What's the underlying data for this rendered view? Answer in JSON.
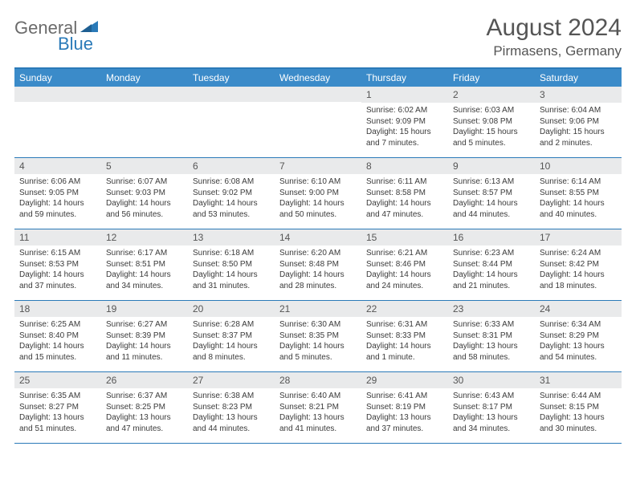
{
  "logo": {
    "part1": "General",
    "part2": "Blue"
  },
  "title": {
    "month": "August 2024",
    "location": "Pirmasens, Germany"
  },
  "colors": {
    "header_bg": "#3b8bc9",
    "header_border": "#2a7ab8",
    "band_bg": "#e9eaeb",
    "text": "#3a3a3a",
    "title_text": "#555555"
  },
  "dow": [
    "Sunday",
    "Monday",
    "Tuesday",
    "Wednesday",
    "Thursday",
    "Friday",
    "Saturday"
  ],
  "weeks": [
    [
      {
        "day": "",
        "sunrise": "",
        "sunset": "",
        "daylight": ""
      },
      {
        "day": "",
        "sunrise": "",
        "sunset": "",
        "daylight": ""
      },
      {
        "day": "",
        "sunrise": "",
        "sunset": "",
        "daylight": ""
      },
      {
        "day": "",
        "sunrise": "",
        "sunset": "",
        "daylight": ""
      },
      {
        "day": "1",
        "sunrise": "Sunrise: 6:02 AM",
        "sunset": "Sunset: 9:09 PM",
        "daylight": "Daylight: 15 hours and 7 minutes."
      },
      {
        "day": "2",
        "sunrise": "Sunrise: 6:03 AM",
        "sunset": "Sunset: 9:08 PM",
        "daylight": "Daylight: 15 hours and 5 minutes."
      },
      {
        "day": "3",
        "sunrise": "Sunrise: 6:04 AM",
        "sunset": "Sunset: 9:06 PM",
        "daylight": "Daylight: 15 hours and 2 minutes."
      }
    ],
    [
      {
        "day": "4",
        "sunrise": "Sunrise: 6:06 AM",
        "sunset": "Sunset: 9:05 PM",
        "daylight": "Daylight: 14 hours and 59 minutes."
      },
      {
        "day": "5",
        "sunrise": "Sunrise: 6:07 AM",
        "sunset": "Sunset: 9:03 PM",
        "daylight": "Daylight: 14 hours and 56 minutes."
      },
      {
        "day": "6",
        "sunrise": "Sunrise: 6:08 AM",
        "sunset": "Sunset: 9:02 PM",
        "daylight": "Daylight: 14 hours and 53 minutes."
      },
      {
        "day": "7",
        "sunrise": "Sunrise: 6:10 AM",
        "sunset": "Sunset: 9:00 PM",
        "daylight": "Daylight: 14 hours and 50 minutes."
      },
      {
        "day": "8",
        "sunrise": "Sunrise: 6:11 AM",
        "sunset": "Sunset: 8:58 PM",
        "daylight": "Daylight: 14 hours and 47 minutes."
      },
      {
        "day": "9",
        "sunrise": "Sunrise: 6:13 AM",
        "sunset": "Sunset: 8:57 PM",
        "daylight": "Daylight: 14 hours and 44 minutes."
      },
      {
        "day": "10",
        "sunrise": "Sunrise: 6:14 AM",
        "sunset": "Sunset: 8:55 PM",
        "daylight": "Daylight: 14 hours and 40 minutes."
      }
    ],
    [
      {
        "day": "11",
        "sunrise": "Sunrise: 6:15 AM",
        "sunset": "Sunset: 8:53 PM",
        "daylight": "Daylight: 14 hours and 37 minutes."
      },
      {
        "day": "12",
        "sunrise": "Sunrise: 6:17 AM",
        "sunset": "Sunset: 8:51 PM",
        "daylight": "Daylight: 14 hours and 34 minutes."
      },
      {
        "day": "13",
        "sunrise": "Sunrise: 6:18 AM",
        "sunset": "Sunset: 8:50 PM",
        "daylight": "Daylight: 14 hours and 31 minutes."
      },
      {
        "day": "14",
        "sunrise": "Sunrise: 6:20 AM",
        "sunset": "Sunset: 8:48 PM",
        "daylight": "Daylight: 14 hours and 28 minutes."
      },
      {
        "day": "15",
        "sunrise": "Sunrise: 6:21 AM",
        "sunset": "Sunset: 8:46 PM",
        "daylight": "Daylight: 14 hours and 24 minutes."
      },
      {
        "day": "16",
        "sunrise": "Sunrise: 6:23 AM",
        "sunset": "Sunset: 8:44 PM",
        "daylight": "Daylight: 14 hours and 21 minutes."
      },
      {
        "day": "17",
        "sunrise": "Sunrise: 6:24 AM",
        "sunset": "Sunset: 8:42 PM",
        "daylight": "Daylight: 14 hours and 18 minutes."
      }
    ],
    [
      {
        "day": "18",
        "sunrise": "Sunrise: 6:25 AM",
        "sunset": "Sunset: 8:40 PM",
        "daylight": "Daylight: 14 hours and 15 minutes."
      },
      {
        "day": "19",
        "sunrise": "Sunrise: 6:27 AM",
        "sunset": "Sunset: 8:39 PM",
        "daylight": "Daylight: 14 hours and 11 minutes."
      },
      {
        "day": "20",
        "sunrise": "Sunrise: 6:28 AM",
        "sunset": "Sunset: 8:37 PM",
        "daylight": "Daylight: 14 hours and 8 minutes."
      },
      {
        "day": "21",
        "sunrise": "Sunrise: 6:30 AM",
        "sunset": "Sunset: 8:35 PM",
        "daylight": "Daylight: 14 hours and 5 minutes."
      },
      {
        "day": "22",
        "sunrise": "Sunrise: 6:31 AM",
        "sunset": "Sunset: 8:33 PM",
        "daylight": "Daylight: 14 hours and 1 minute."
      },
      {
        "day": "23",
        "sunrise": "Sunrise: 6:33 AM",
        "sunset": "Sunset: 8:31 PM",
        "daylight": "Daylight: 13 hours and 58 minutes."
      },
      {
        "day": "24",
        "sunrise": "Sunrise: 6:34 AM",
        "sunset": "Sunset: 8:29 PM",
        "daylight": "Daylight: 13 hours and 54 minutes."
      }
    ],
    [
      {
        "day": "25",
        "sunrise": "Sunrise: 6:35 AM",
        "sunset": "Sunset: 8:27 PM",
        "daylight": "Daylight: 13 hours and 51 minutes."
      },
      {
        "day": "26",
        "sunrise": "Sunrise: 6:37 AM",
        "sunset": "Sunset: 8:25 PM",
        "daylight": "Daylight: 13 hours and 47 minutes."
      },
      {
        "day": "27",
        "sunrise": "Sunrise: 6:38 AM",
        "sunset": "Sunset: 8:23 PM",
        "daylight": "Daylight: 13 hours and 44 minutes."
      },
      {
        "day": "28",
        "sunrise": "Sunrise: 6:40 AM",
        "sunset": "Sunset: 8:21 PM",
        "daylight": "Daylight: 13 hours and 41 minutes."
      },
      {
        "day": "29",
        "sunrise": "Sunrise: 6:41 AM",
        "sunset": "Sunset: 8:19 PM",
        "daylight": "Daylight: 13 hours and 37 minutes."
      },
      {
        "day": "30",
        "sunrise": "Sunrise: 6:43 AM",
        "sunset": "Sunset: 8:17 PM",
        "daylight": "Daylight: 13 hours and 34 minutes."
      },
      {
        "day": "31",
        "sunrise": "Sunrise: 6:44 AM",
        "sunset": "Sunset: 8:15 PM",
        "daylight": "Daylight: 13 hours and 30 minutes."
      }
    ]
  ]
}
